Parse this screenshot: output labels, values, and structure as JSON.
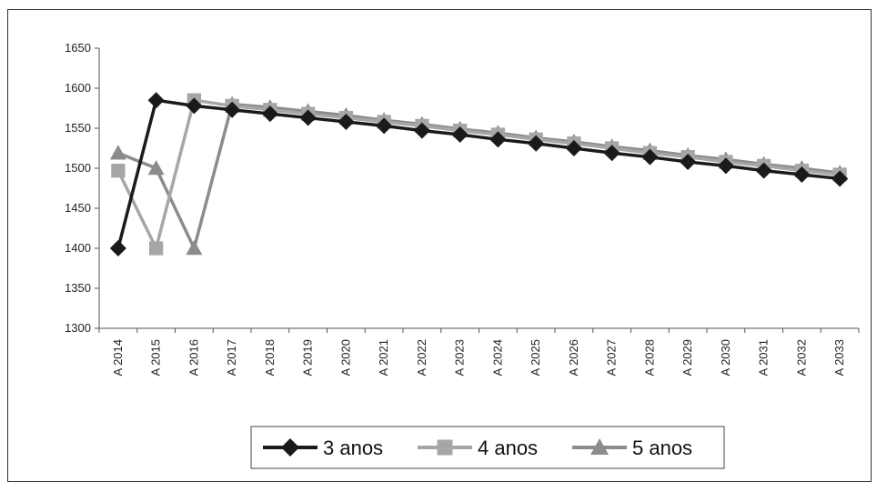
{
  "chart_data": {
    "type": "line",
    "title": "",
    "xlabel": "",
    "ylabel": "",
    "ylim": [
      1300,
      1650
    ],
    "y_ticks": [
      1300,
      1350,
      1400,
      1450,
      1500,
      1550,
      1600,
      1650
    ],
    "grid": false,
    "legend_position": "bottom",
    "categories": [
      "A 2014",
      "A 2015",
      "A 2016",
      "A 2017",
      "A 2018",
      "A 2019",
      "A 2020",
      "A 2021",
      "A 2022",
      "A 2023",
      "A 2024",
      "A 2025",
      "A 2026",
      "A 2027",
      "A 2028",
      "A 2029",
      "A 2030",
      "A 2031",
      "A 2032",
      "A 2033"
    ],
    "series": [
      {
        "name": "3 anos",
        "color": "#1a1a1a",
        "marker": "diamond",
        "values": [
          1400,
          1585,
          1578,
          1573,
          1568,
          1563,
          1558,
          1553,
          1547,
          1542,
          1536,
          1531,
          1525,
          1519,
          1514,
          1508,
          1503,
          1497,
          1492,
          1487
        ]
      },
      {
        "name": "4 anos",
        "color": "#a6a6a6",
        "marker": "square",
        "values": [
          1497,
          1400,
          1585,
          1578,
          1573,
          1568,
          1563,
          1558,
          1553,
          1547,
          1542,
          1536,
          1531,
          1525,
          1519,
          1514,
          1508,
          1503,
          1497,
          1492
        ]
      },
      {
        "name": "5 anos",
        "color": "#8c8c8c",
        "marker": "triangle",
        "values": [
          1519,
          1500,
          1400,
          1580,
          1576,
          1571,
          1566,
          1560,
          1555,
          1549,
          1544,
          1538,
          1533,
          1527,
          1522,
          1516,
          1511,
          1505,
          1500,
          1494
        ]
      }
    ]
  }
}
